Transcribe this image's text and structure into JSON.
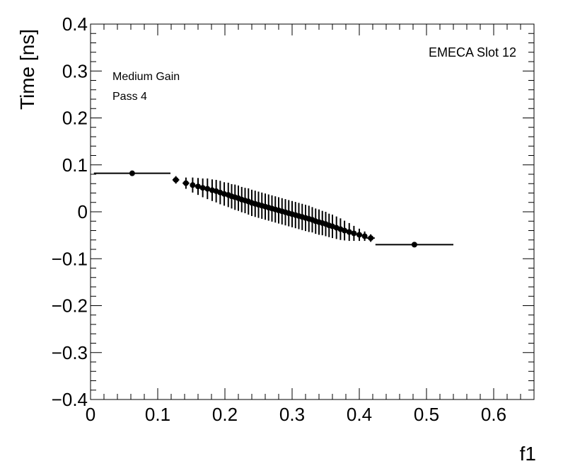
{
  "chart_data": {
    "type": "scatter",
    "xlabel": "f1",
    "ylabel": "Time [ns]",
    "xlim": [
      0,
      0.66
    ],
    "ylim": [
      -0.4,
      0.4
    ],
    "x_ticks": [
      "0",
      "0.1",
      "0.2",
      "0.3",
      "0.4",
      "0.5",
      "0.6"
    ],
    "y_ticks": [
      "−0.4",
      "−0.3",
      "−0.2",
      "−0.1",
      "0",
      "0.1",
      "0.2",
      "0.3",
      "0.4"
    ],
    "annotations": {
      "label_top_right": "EMECA Slot 12",
      "label_gain": "Medium Gain",
      "label_pass": "Pass 4"
    },
    "grid": false,
    "marker_color": "#000000",
    "points": [
      {
        "x": 0.062,
        "y": 0.082,
        "xerr": 0.057,
        "yerr": 0.004
      },
      {
        "x": 0.127,
        "y": 0.068,
        "xerr": 0.005,
        "yerr": 0.008
      },
      {
        "x": 0.142,
        "y": 0.061,
        "xerr": 0.005,
        "yerr": 0.012
      },
      {
        "x": 0.152,
        "y": 0.057,
        "xerr": 0.004,
        "yerr": 0.016
      },
      {
        "x": 0.16,
        "y": 0.054,
        "xerr": 0.004,
        "yerr": 0.018
      },
      {
        "x": 0.167,
        "y": 0.051,
        "xerr": 0.003,
        "yerr": 0.02
      },
      {
        "x": 0.174,
        "y": 0.049,
        "xerr": 0.003,
        "yerr": 0.022
      },
      {
        "x": 0.181,
        "y": 0.046,
        "xerr": 0.003,
        "yerr": 0.023
      },
      {
        "x": 0.187,
        "y": 0.044,
        "xerr": 0.003,
        "yerr": 0.024
      },
      {
        "x": 0.193,
        "y": 0.041,
        "xerr": 0.003,
        "yerr": 0.025
      },
      {
        "x": 0.199,
        "y": 0.038,
        "xerr": 0.003,
        "yerr": 0.025
      },
      {
        "x": 0.205,
        "y": 0.036,
        "xerr": 0.003,
        "yerr": 0.026
      },
      {
        "x": 0.21,
        "y": 0.033,
        "xerr": 0.003,
        "yerr": 0.026
      },
      {
        "x": 0.215,
        "y": 0.031,
        "xerr": 0.003,
        "yerr": 0.027
      },
      {
        "x": 0.22,
        "y": 0.029,
        "xerr": 0.002,
        "yerr": 0.027
      },
      {
        "x": 0.225,
        "y": 0.026,
        "xerr": 0.002,
        "yerr": 0.027
      },
      {
        "x": 0.23,
        "y": 0.024,
        "xerr": 0.002,
        "yerr": 0.027
      },
      {
        "x": 0.235,
        "y": 0.022,
        "xerr": 0.002,
        "yerr": 0.028
      },
      {
        "x": 0.24,
        "y": 0.019,
        "xerr": 0.002,
        "yerr": 0.028
      },
      {
        "x": 0.245,
        "y": 0.017,
        "xerr": 0.002,
        "yerr": 0.028
      },
      {
        "x": 0.25,
        "y": 0.015,
        "xerr": 0.002,
        "yerr": 0.028
      },
      {
        "x": 0.255,
        "y": 0.013,
        "xerr": 0.002,
        "yerr": 0.028
      },
      {
        "x": 0.26,
        "y": 0.011,
        "xerr": 0.002,
        "yerr": 0.028
      },
      {
        "x": 0.265,
        "y": 0.009,
        "xerr": 0.002,
        "yerr": 0.028
      },
      {
        "x": 0.27,
        "y": 0.007,
        "xerr": 0.002,
        "yerr": 0.028
      },
      {
        "x": 0.275,
        "y": 0.005,
        "xerr": 0.002,
        "yerr": 0.028
      },
      {
        "x": 0.28,
        "y": 0.003,
        "xerr": 0.002,
        "yerr": 0.028
      },
      {
        "x": 0.285,
        "y": 0.001,
        "xerr": 0.002,
        "yerr": 0.028
      },
      {
        "x": 0.29,
        "y": -0.001,
        "xerr": 0.002,
        "yerr": 0.028
      },
      {
        "x": 0.295,
        "y": -0.003,
        "xerr": 0.002,
        "yerr": 0.028
      },
      {
        "x": 0.3,
        "y": -0.005,
        "xerr": 0.002,
        "yerr": 0.028
      },
      {
        "x": 0.305,
        "y": -0.007,
        "xerr": 0.002,
        "yerr": 0.028
      },
      {
        "x": 0.31,
        "y": -0.009,
        "xerr": 0.002,
        "yerr": 0.028
      },
      {
        "x": 0.315,
        "y": -0.011,
        "xerr": 0.002,
        "yerr": 0.028
      },
      {
        "x": 0.32,
        "y": -0.013,
        "xerr": 0.002,
        "yerr": 0.028
      },
      {
        "x": 0.325,
        "y": -0.015,
        "xerr": 0.002,
        "yerr": 0.028
      },
      {
        "x": 0.33,
        "y": -0.017,
        "xerr": 0.002,
        "yerr": 0.027
      },
      {
        "x": 0.335,
        "y": -0.02,
        "xerr": 0.002,
        "yerr": 0.027
      },
      {
        "x": 0.34,
        "y": -0.022,
        "xerr": 0.002,
        "yerr": 0.027
      },
      {
        "x": 0.345,
        "y": -0.024,
        "xerr": 0.002,
        "yerr": 0.026
      },
      {
        "x": 0.35,
        "y": -0.026,
        "xerr": 0.002,
        "yerr": 0.026
      },
      {
        "x": 0.355,
        "y": -0.029,
        "xerr": 0.002,
        "yerr": 0.025
      },
      {
        "x": 0.36,
        "y": -0.031,
        "xerr": 0.002,
        "yerr": 0.025
      },
      {
        "x": 0.366,
        "y": -0.034,
        "xerr": 0.003,
        "yerr": 0.024
      },
      {
        "x": 0.372,
        "y": -0.037,
        "xerr": 0.003,
        "yerr": 0.023
      },
      {
        "x": 0.378,
        "y": -0.04,
        "xerr": 0.003,
        "yerr": 0.021
      },
      {
        "x": 0.385,
        "y": -0.043,
        "xerr": 0.003,
        "yerr": 0.019
      },
      {
        "x": 0.392,
        "y": -0.046,
        "xerr": 0.004,
        "yerr": 0.016
      },
      {
        "x": 0.4,
        "y": -0.049,
        "xerr": 0.004,
        "yerr": 0.013
      },
      {
        "x": 0.408,
        "y": -0.052,
        "xerr": 0.004,
        "yerr": 0.01
      },
      {
        "x": 0.417,
        "y": -0.056,
        "xerr": 0.006,
        "yerr": 0.008
      },
      {
        "x": 0.482,
        "y": -0.07,
        "xerr": 0.058,
        "yerr": 0.004
      }
    ]
  }
}
